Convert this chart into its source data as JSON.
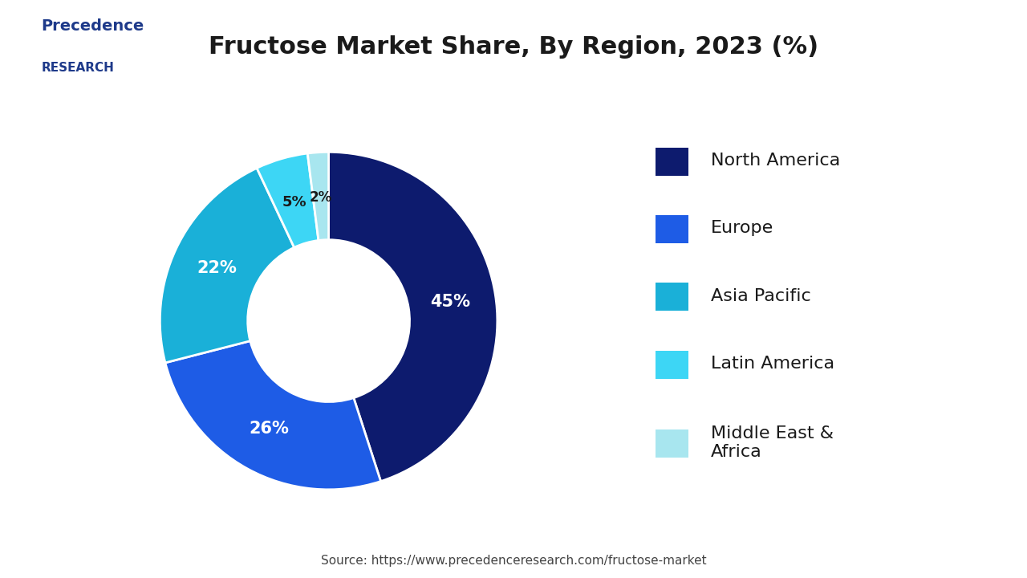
{
  "title": "Fructose Market Share, By Region, 2023 (%)",
  "labels": [
    "North America",
    "Europe",
    "Asia Pacific",
    "Latin America",
    "Middle East &\nAfrica"
  ],
  "values": [
    45,
    26,
    22,
    5,
    2
  ],
  "colors": [
    "#0d1b6e",
    "#1e5ce6",
    "#1ab0d8",
    "#3dd6f5",
    "#a8e6ef"
  ],
  "pct_labels": [
    "45%",
    "26%",
    "22%",
    "5%",
    "2%"
  ],
  "pct_colors": [
    "white",
    "white",
    "white",
    "#1a1a1a",
    "#1a1a1a"
  ],
  "source_text": "Source: https://www.precedenceresearch.com/fructose-market",
  "background_color": "#ffffff",
  "title_fontsize": 22,
  "legend_fontsize": 16,
  "logo_text_line1": "Precedence",
  "logo_text_line2": "RESEARCH"
}
